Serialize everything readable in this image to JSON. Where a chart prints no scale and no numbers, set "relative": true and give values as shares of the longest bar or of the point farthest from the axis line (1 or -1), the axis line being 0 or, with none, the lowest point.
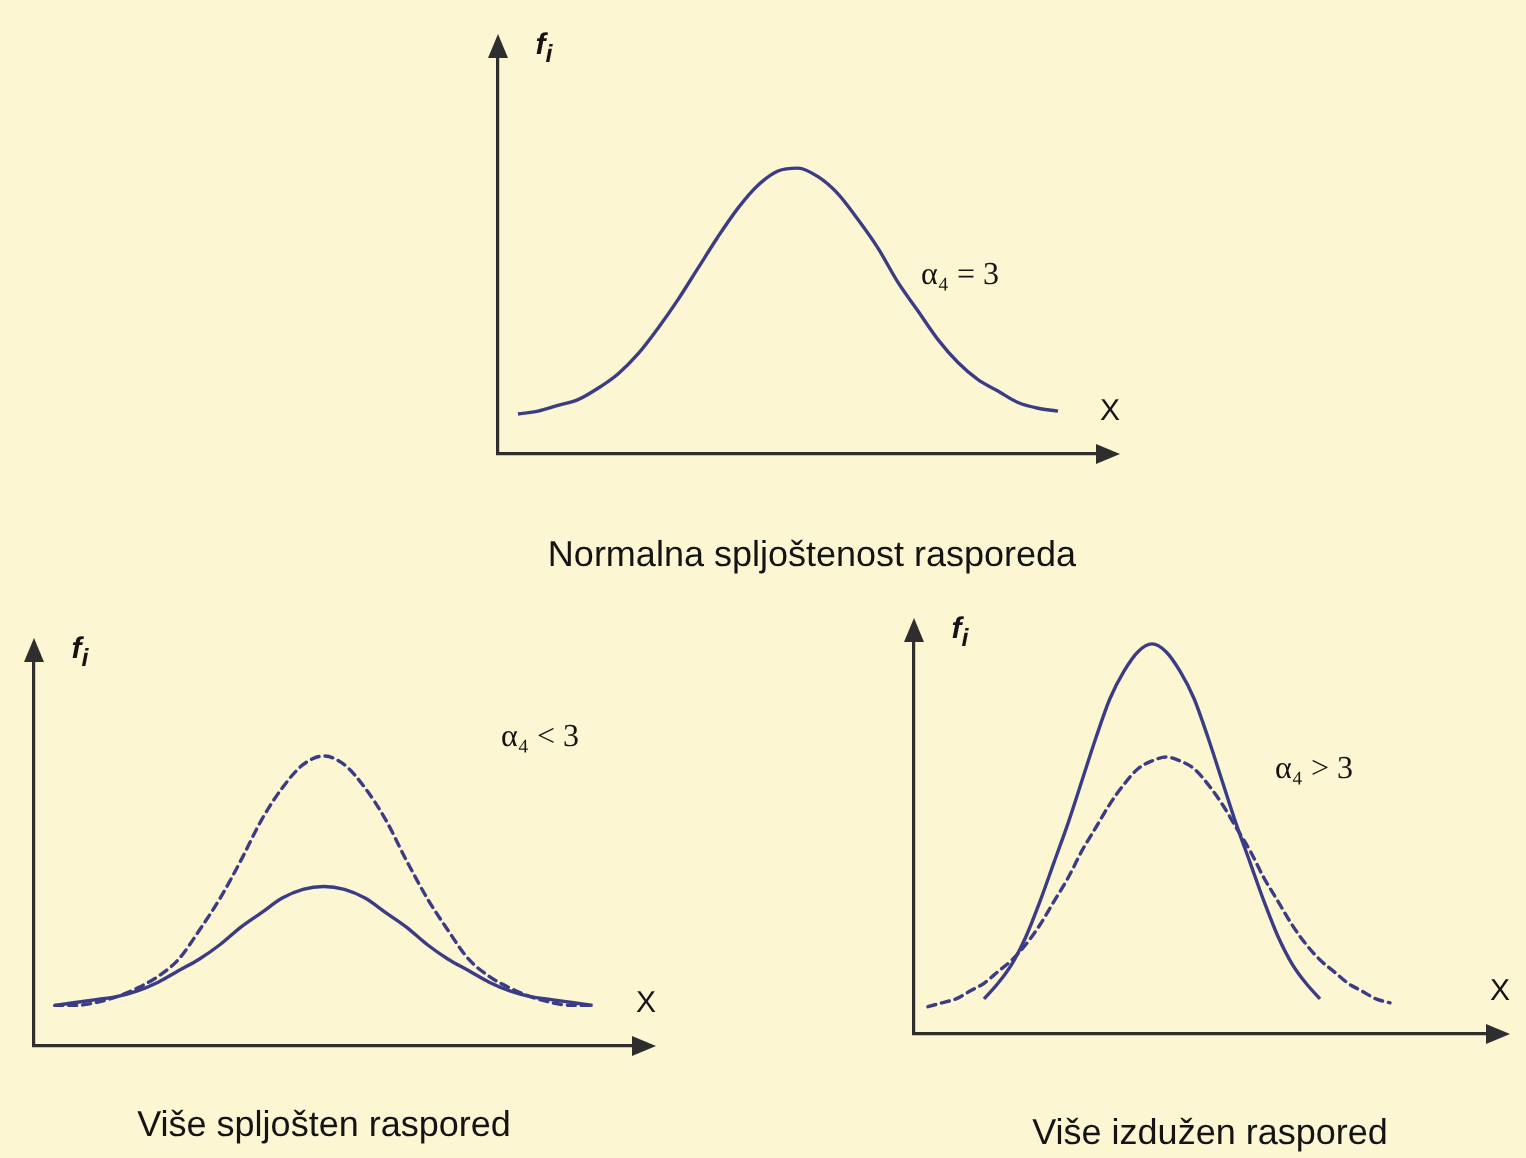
{
  "chart_data": [
    {
      "type": "line",
      "title": "Normalna spljoštenost rasporeda",
      "xlabel": "X",
      "ylabel": "f$_{i}$",
      "annotations": [
        "α₄ = 3"
      ],
      "relative": true,
      "legend": false,
      "tick_labels": false,
      "marker": "none",
      "line_style": "solid",
      "categories": [
        null,
        null,
        null,
        null,
        null,
        null,
        null,
        null,
        null,
        null,
        null,
        null,
        null,
        null,
        null,
        null,
        null,
        null,
        null,
        null,
        null,
        null,
        null,
        null,
        null,
        null,
        null,
        null,
        null,
        null,
        null
      ],
      "series": [
        {
          "color": "#3a3d85",
          "values": [
            null,
            0.14,
            0.15,
            0.17,
            0.19,
            0.23,
            0.28,
            0.35,
            0.44,
            0.54,
            0.65,
            0.76,
            0.86,
            0.94,
            0.99,
            1,
            0.97,
            0.91,
            0.82,
            0.72,
            0.6,
            0.5,
            0.4,
            0.32,
            0.26,
            0.22,
            0.18,
            0.16,
            0.15,
            null,
            null
          ]
        }
      ]
    },
    {
      "type": "line",
      "title": "Više spljošten raspored",
      "xlabel": "X",
      "ylabel": "f$_{i}$",
      "annotations": [
        "α₄ < 3"
      ],
      "relative": true,
      "legend": false,
      "tick_labels": false,
      "marker": "none",
      "line_style": "solid",
      "categories": [
        null,
        null,
        null,
        null,
        null,
        null,
        null,
        null,
        null,
        null,
        null,
        null,
        null,
        null,
        null,
        null,
        null,
        null,
        null,
        null,
        null,
        null,
        null,
        null,
        null,
        null,
        null,
        null,
        null,
        null
      ],
      "series": [
        {
          "color": "#3a3d85",
          "line_style": "dashed",
          "values": [
            null,
            0.14,
            0.14,
            0.15,
            0.17,
            0.2,
            0.24,
            0.3,
            0.4,
            0.51,
            0.64,
            0.78,
            0.89,
            0.97,
            1,
            0.97,
            0.89,
            0.78,
            0.64,
            0.51,
            0.4,
            0.3,
            0.24,
            0.2,
            0.17,
            0.15,
            0.14,
            0.14,
            null,
            null
          ]
        },
        {
          "color": "#3a3d85",
          "values": [
            null,
            0.14,
            0.15,
            0.16,
            0.17,
            0.19,
            0.22,
            0.26,
            0.3,
            0.35,
            0.41,
            0.46,
            0.51,
            0.54,
            0.55,
            0.54,
            0.51,
            0.46,
            0.41,
            0.35,
            0.3,
            0.26,
            0.22,
            0.19,
            0.17,
            0.16,
            0.15,
            0.14,
            null,
            null
          ]
        }
      ]
    },
    {
      "type": "line",
      "title": "Više izdužen raspored",
      "xlabel": "X",
      "ylabel": "f$_{i}$",
      "annotations": [
        "α₄ > 3"
      ],
      "relative": true,
      "legend": false,
      "tick_labels": false,
      "marker": "none",
      "line_style": "solid",
      "categories": [
        null,
        null,
        null,
        null,
        null,
        null,
        null,
        null,
        null,
        null,
        null,
        null,
        null,
        null,
        null,
        null,
        null,
        null,
        null,
        null,
        null,
        null,
        null,
        null,
        null,
        null,
        null,
        null,
        null,
        null,
        null,
        null,
        null,
        null,
        null,
        null,
        null,
        null,
        null,
        null,
        null,
        null
      ],
      "series": [
        {
          "color": "#3a3d85",
          "values": [
            null,
            null,
            null,
            null,
            null,
            0.09,
            0.13,
            0.18,
            0.25,
            0.34,
            0.44,
            0.54,
            0.65,
            0.76,
            0.86,
            0.93,
            0.98,
            1,
            0.98,
            0.93,
            0.86,
            0.76,
            0.65,
            0.54,
            0.44,
            0.34,
            0.25,
            0.18,
            0.13,
            0.09,
            null,
            null,
            null,
            null,
            null,
            null,
            null,
            null,
            null,
            null,
            null,
            null
          ]
        },
        {
          "color": "#3a3d85",
          "line_style": "dashed",
          "values": [
            null,
            0.07,
            0.08,
            0.09,
            0.11,
            0.13,
            0.16,
            0.19,
            0.23,
            0.28,
            0.34,
            0.4,
            0.47,
            0.53,
            0.59,
            0.64,
            0.68,
            0.7,
            0.71,
            0.7,
            0.68,
            0.64,
            0.59,
            0.53,
            0.47,
            0.4,
            0.34,
            0.28,
            0.23,
            0.19,
            0.16,
            0.13,
            0.11,
            0.09,
            0.08,
            null,
            null,
            null,
            null,
            null,
            null,
            null
          ]
        }
      ]
    }
  ]
}
